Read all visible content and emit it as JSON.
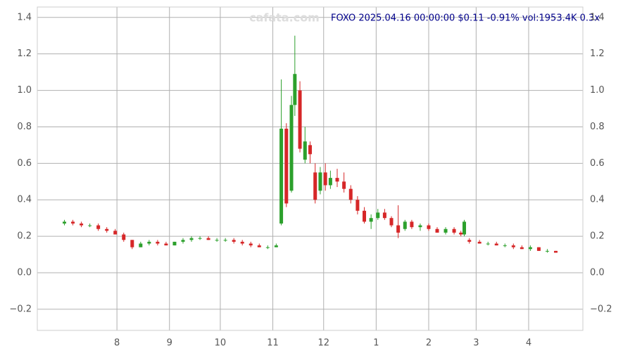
{
  "chart_data": {
    "type": "candlestick",
    "title": "FOXO 2025.04.16 00:00:00 $0.11 -0.91% vol:1953.4K 0.3x",
    "watermark": "cafata.com",
    "x": [
      0,
      5,
      10,
      15,
      20,
      25,
      30,
      35,
      40,
      45,
      50,
      55,
      60,
      65,
      70,
      75,
      80,
      85,
      90,
      95,
      100,
      105,
      110,
      115,
      120,
      125,
      128,
      131,
      134,
      136,
      139,
      142,
      145,
      148,
      151,
      154,
      157,
      161,
      165,
      169,
      173,
      177,
      181,
      185,
      189,
      193,
      197,
      201,
      205,
      210,
      215,
      220,
      225,
      230,
      234,
      236,
      239,
      245,
      250,
      255,
      260,
      265,
      270,
      275,
      280,
      285,
      290
    ],
    "open": [
      0.27,
      0.28,
      0.27,
      0.26,
      0.26,
      0.24,
      0.23,
      0.21,
      0.18,
      0.14,
      0.16,
      0.17,
      0.16,
      0.15,
      0.17,
      0.18,
      0.19,
      0.19,
      0.18,
      0.18,
      0.18,
      0.17,
      0.16,
      0.15,
      0.14,
      0.14,
      0.27,
      0.79,
      0.45,
      0.92,
      1.0,
      0.62,
      0.7,
      0.55,
      0.45,
      0.55,
      0.48,
      0.52,
      0.5,
      0.46,
      0.4,
      0.34,
      0.28,
      0.3,
      0.33,
      0.3,
      0.26,
      0.24,
      0.28,
      0.25,
      0.26,
      0.24,
      0.22,
      0.24,
      0.22,
      0.21,
      0.18,
      0.17,
      0.16,
      0.16,
      0.15,
      0.15,
      0.14,
      0.13,
      0.14,
      0.12,
      0.12
    ],
    "high": [
      0.29,
      0.29,
      0.28,
      0.27,
      0.27,
      0.25,
      0.24,
      0.22,
      0.18,
      0.17,
      0.18,
      0.18,
      0.17,
      0.17,
      0.19,
      0.2,
      0.2,
      0.2,
      0.19,
      0.19,
      0.19,
      0.18,
      0.17,
      0.16,
      0.15,
      0.16,
      1.06,
      0.82,
      0.97,
      1.3,
      1.05,
      0.8,
      0.72,
      0.6,
      0.58,
      0.6,
      0.56,
      0.57,
      0.55,
      0.48,
      0.42,
      0.36,
      0.32,
      0.35,
      0.35,
      0.31,
      0.37,
      0.29,
      0.29,
      0.27,
      0.27,
      0.25,
      0.25,
      0.25,
      0.23,
      0.29,
      0.19,
      0.18,
      0.17,
      0.17,
      0.16,
      0.16,
      0.15,
      0.15,
      0.14,
      0.13,
      0.12
    ],
    "low": [
      0.26,
      0.26,
      0.25,
      0.25,
      0.23,
      0.22,
      0.21,
      0.17,
      0.13,
      0.14,
      0.15,
      0.15,
      0.15,
      0.15,
      0.16,
      0.17,
      0.18,
      0.18,
      0.17,
      0.17,
      0.16,
      0.15,
      0.14,
      0.14,
      0.13,
      0.14,
      0.26,
      0.36,
      0.44,
      0.86,
      0.66,
      0.6,
      0.6,
      0.38,
      0.43,
      0.45,
      0.46,
      0.47,
      0.44,
      0.38,
      0.32,
      0.27,
      0.24,
      0.29,
      0.29,
      0.25,
      0.19,
      0.23,
      0.24,
      0.23,
      0.23,
      0.22,
      0.21,
      0.21,
      0.2,
      0.2,
      0.16,
      0.16,
      0.15,
      0.15,
      0.14,
      0.13,
      0.13,
      0.12,
      0.12,
      0.11,
      0.11
    ],
    "close": [
      0.28,
      0.27,
      0.26,
      0.26,
      0.24,
      0.23,
      0.21,
      0.18,
      0.14,
      0.16,
      0.17,
      0.16,
      0.15,
      0.17,
      0.18,
      0.19,
      0.19,
      0.18,
      0.18,
      0.18,
      0.17,
      0.16,
      0.15,
      0.14,
      0.14,
      0.15,
      0.79,
      0.38,
      0.92,
      1.09,
      0.68,
      0.72,
      0.65,
      0.4,
      0.55,
      0.48,
      0.52,
      0.5,
      0.46,
      0.4,
      0.34,
      0.28,
      0.3,
      0.33,
      0.3,
      0.26,
      0.22,
      0.28,
      0.25,
      0.26,
      0.24,
      0.22,
      0.24,
      0.22,
      0.21,
      0.28,
      0.17,
      0.16,
      0.16,
      0.15,
      0.15,
      0.14,
      0.13,
      0.14,
      0.12,
      0.12,
      0.11
    ],
    "up_color": "#2ca02c",
    "down_color": "#d62728",
    "xlim": [
      -16,
      306
    ],
    "xticks": [
      {
        "value": 31,
        "label": "8"
      },
      {
        "value": 62,
        "label": "9"
      },
      {
        "value": 92,
        "label": "10"
      },
      {
        "value": 123,
        "label": "11"
      },
      {
        "value": 153,
        "label": "12"
      },
      {
        "value": 184,
        "label": "1"
      },
      {
        "value": 215,
        "label": "2"
      },
      {
        "value": 243,
        "label": "3"
      },
      {
        "value": 274,
        "label": "4"
      }
    ],
    "ylim": [
      -0.316,
      1.457
    ],
    "yticks": [
      {
        "value": -0.2,
        "label": "−0.2"
      },
      {
        "value": 0,
        "label": "0.0"
      },
      0.2,
      0.4,
      0.6,
      0.8,
      {
        "value": 1,
        "label": "1.0"
      },
      1.2,
      1.4
    ],
    "grid": true
  }
}
